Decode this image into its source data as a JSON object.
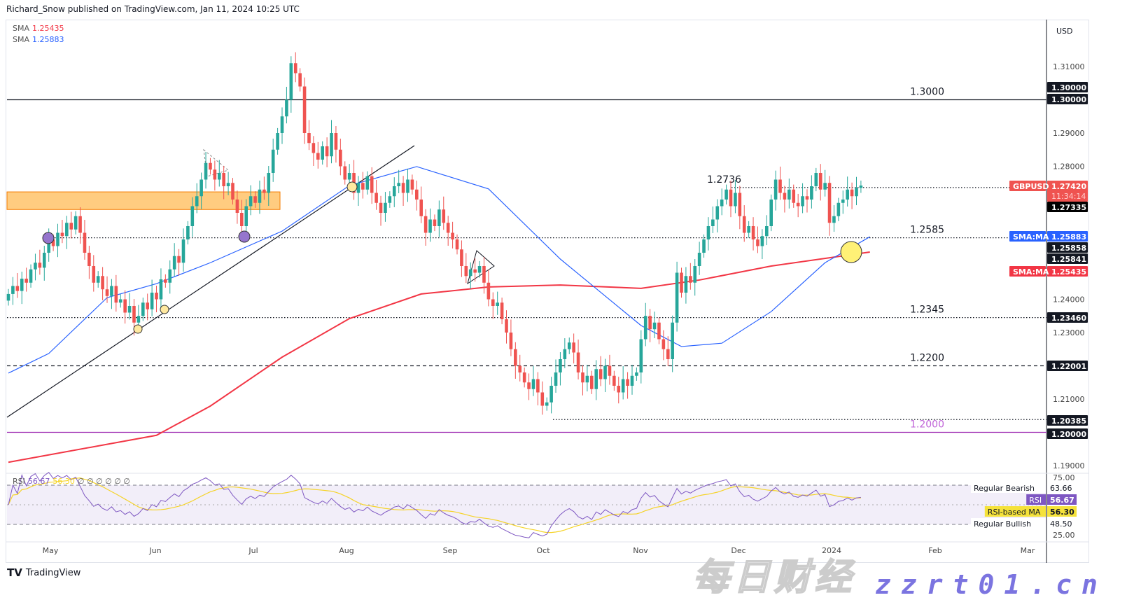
{
  "header": {
    "published": "Richard_Snow published on TradingView.com, Jan 11, 2024 10:25 UTC"
  },
  "legend": {
    "sma1_label": "SMA",
    "sma1_value": "1.25435",
    "sma2_label": "SMA",
    "sma2_value": "1.25883",
    "rsi_label": "RSI",
    "rsi_value": "56.67",
    "rsi_ma_value": "56.30",
    "rsi_extra": "∅ ∅ ∅ ∅ ∅ ∅"
  },
  "colors": {
    "up": "#26a69a",
    "down": "#ef5350",
    "sma_fast": "#2962ff",
    "sma_slow": "#f23645",
    "rsi": "#7e57c2",
    "rsi_ma": "#f5d328",
    "zone": "#ffb74d",
    "level_2000": "#9c27b0"
  },
  "chart_data": {
    "type": "candlestick",
    "symbol": "GBPUSD",
    "currency": "USD",
    "ylim": [
      1.187,
      1.3175
    ],
    "y_ticks": [
      "1.31000",
      "1.29000",
      "1.28000",
      "1.24000",
      "1.23000",
      "1.21000",
      "1.19000"
    ],
    "x_ticks": [
      "May",
      "Jun",
      "Jul",
      "Aug",
      "Sep",
      "Oct",
      "Nov",
      "Dec",
      "2024",
      "Feb",
      "Mar"
    ],
    "closes": [
      1.2416,
      1.244,
      1.2425,
      1.2462,
      1.245,
      1.249,
      1.251,
      1.2495,
      1.254,
      1.258,
      1.256,
      1.26,
      1.259,
      1.263,
      1.261,
      1.265,
      1.26,
      1.254,
      1.25,
      1.245,
      1.247,
      1.243,
      1.241,
      1.244,
      1.239,
      1.24,
      1.236,
      1.238,
      1.233,
      1.235,
      1.239,
      1.237,
      1.242,
      1.24,
      1.246,
      1.245,
      1.249,
      1.253,
      1.251,
      1.258,
      1.262,
      1.268,
      1.271,
      1.276,
      1.281,
      1.279,
      1.276,
      1.278,
      1.274,
      1.275,
      1.27,
      1.266,
      1.262,
      1.268,
      1.271,
      1.269,
      1.273,
      1.272,
      1.278,
      1.285,
      1.29,
      1.295,
      1.3,
      1.311,
      1.308,
      1.304,
      1.29,
      1.287,
      1.284,
      1.282,
      1.286,
      1.283,
      1.29,
      1.285,
      1.28,
      1.276,
      1.278,
      1.272,
      1.275,
      1.273,
      1.277,
      1.272,
      1.269,
      1.266,
      1.269,
      1.271,
      1.274,
      1.275,
      1.272,
      1.276,
      1.273,
      1.27,
      1.265,
      1.26,
      1.264,
      1.262,
      1.267,
      1.263,
      1.26,
      1.258,
      1.255,
      1.25,
      1.247,
      1.249,
      1.248,
      1.25,
      1.245,
      1.24,
      1.238,
      1.239,
      1.234,
      1.23,
      1.225,
      1.22,
      1.218,
      1.215,
      1.213,
      1.216,
      1.212,
      1.208,
      1.209,
      1.214,
      1.218,
      1.222,
      1.225,
      1.227,
      1.224,
      1.218,
      1.215,
      1.217,
      1.213,
      1.219,
      1.216,
      1.22,
      1.217,
      1.214,
      1.212,
      1.216,
      1.214,
      1.217,
      1.218,
      1.228,
      1.235,
      1.231,
      1.233,
      1.228,
      1.225,
      1.222,
      1.233,
      1.248,
      1.242,
      1.247,
      1.245,
      1.25,
      1.254,
      1.258,
      1.262,
      1.264,
      1.268,
      1.27,
      1.273,
      1.268,
      1.272,
      1.265,
      1.26,
      1.262,
      1.258,
      1.256,
      1.259,
      1.262,
      1.27,
      1.276,
      1.272,
      1.27,
      1.273,
      1.269,
      1.268,
      1.271,
      1.27,
      1.274,
      1.278,
      1.273,
      1.275,
      1.263,
      1.265,
      1.269,
      1.27,
      1.273,
      1.271,
      1.2735,
      1.2742
    ],
    "sma_fast": [
      [
        0,
        1.2178
      ],
      [
        9,
        1.2237
      ],
      [
        22,
        1.2405
      ],
      [
        33,
        1.2447
      ],
      [
        45,
        1.251
      ],
      [
        61,
        1.2605
      ],
      [
        76,
        1.2742
      ],
      [
        91,
        1.2799
      ],
      [
        107,
        1.2732
      ],
      [
        123,
        1.2521
      ],
      [
        141,
        1.2321
      ],
      [
        150,
        1.2258
      ],
      [
        159,
        1.2268
      ],
      [
        170,
        1.2363
      ],
      [
        182,
        1.251
      ],
      [
        192,
        1.2588
      ]
    ],
    "sma_slow": [
      [
        0,
        1.191
      ],
      [
        33,
        1.1991
      ],
      [
        45,
        1.2079
      ],
      [
        61,
        1.2226
      ],
      [
        76,
        1.2342
      ],
      [
        92,
        1.2416
      ],
      [
        107,
        1.2437
      ],
      [
        123,
        1.2443
      ],
      [
        141,
        1.2433
      ],
      [
        154,
        1.2458
      ],
      [
        170,
        1.25
      ],
      [
        192,
        1.2542
      ]
    ],
    "levels": [
      {
        "label": "1.3000",
        "price": 1.3,
        "style": "solid",
        "color": "#131722"
      },
      {
        "label": "1.2736",
        "price": 1.2736,
        "style": "dotted",
        "color": "#131722"
      },
      {
        "label": "1.2585",
        "price": 1.2585,
        "style": "dotted",
        "color": "#131722"
      },
      {
        "label": "1.2345",
        "price": 1.2345,
        "style": "dotted",
        "color": "#131722"
      },
      {
        "label": "1.2200",
        "price": 1.22,
        "style": "dashed",
        "color": "#131722"
      },
      {
        "label": "",
        "price": 1.20385,
        "style": "dotted",
        "color": "#131722"
      },
      {
        "label": "1.2000",
        "price": 1.2,
        "style": "solid",
        "color": "#9c27b0"
      }
    ],
    "zone": [
      1.267,
      1.2723
    ],
    "price_labels": [
      {
        "text": "1.30000",
        "bg": "#131722",
        "fg": "#fff"
      },
      {
        "text": "1.30000",
        "bg": "#131722",
        "fg": "#fff"
      },
      {
        "text": "1.27420",
        "sub": "11:34:14",
        "tag": "GBPUSD",
        "bg": "#ef5350",
        "fg": "#fff"
      },
      {
        "text": "1.27335",
        "bg": "#000",
        "fg": "#fff"
      },
      {
        "text": "1.25883",
        "tag": "SMA:MA",
        "bg": "#2962ff",
        "fg": "#fff"
      },
      {
        "text": "1.25858",
        "bg": "#131722",
        "fg": "#fff"
      },
      {
        "text": "1.25841",
        "bg": "#131722",
        "fg": "#fff"
      },
      {
        "text": "1.25435",
        "tag": "SMA:MA",
        "bg": "#f23645",
        "fg": "#fff"
      },
      {
        "text": "1.23460",
        "bg": "#131722",
        "fg": "#fff"
      },
      {
        "text": "1.22001",
        "bg": "#131722",
        "fg": "#fff"
      },
      {
        "text": "1.20385",
        "bg": "#131722",
        "fg": "#fff"
      },
      {
        "text": "1.20000",
        "bg": "#131722",
        "fg": "#fff"
      }
    ],
    "rsi": {
      "levels": [
        70,
        30
      ],
      "ticks": [
        "75.00",
        "25.00"
      ],
      "labels": [
        {
          "tag": "Regular Bearish",
          "text": "63.66",
          "bg": "#fff",
          "fg": "#131722"
        },
        {
          "tag": "RSI",
          "text": "56.67",
          "bg": "#7e57c2",
          "fg": "#fff"
        },
        {
          "tag": "RSI-based MA",
          "text": "56.30",
          "bg": "#f5e23a",
          "fg": "#131722"
        },
        {
          "tag": "Regular Bullish",
          "text": "48.50",
          "bg": "#fff",
          "fg": "#131722"
        }
      ]
    }
  },
  "footer": {
    "brand": "TradingView"
  },
  "watermark": {
    "cn": "每日财经",
    "url": "zzrt01.cn"
  }
}
